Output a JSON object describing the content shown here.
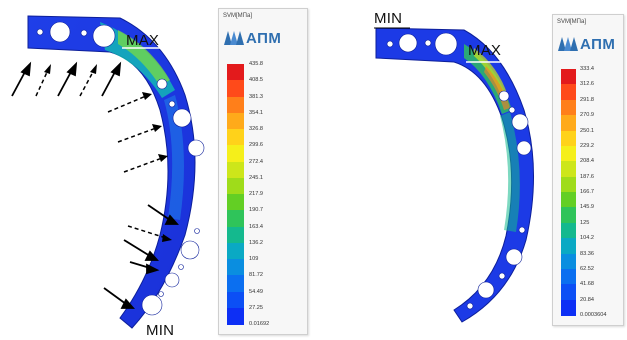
{
  "left": {
    "max_label": "MAX",
    "min_label": "MIN",
    "legend": {
      "title": "SVM[MПa]",
      "logo_text": "АПМ",
      "ticks": [
        "435.8",
        "408.5",
        "381.3",
        "354.1",
        "326.8",
        "299.6",
        "272.4",
        "245.1",
        "217.9",
        "190.7",
        "163.4",
        "136.2",
        "109",
        "81.72",
        "54.49",
        "27.25",
        "0.01692"
      ],
      "colors": [
        "#e31a1c",
        "#ff4a1a",
        "#ff7f1a",
        "#ffaa1a",
        "#ffd21a",
        "#f5ef1a",
        "#cde61a",
        "#9fdc1a",
        "#63cf24",
        "#2fc45a",
        "#14b98e",
        "#0aa9c4",
        "#0a8ee0",
        "#0b6ff0",
        "#0c4ff5",
        "#0d2ff5"
      ]
    }
  },
  "right": {
    "max_label": "MAX",
    "min_label": "MIN",
    "legend": {
      "title": "SVM[MПa]",
      "logo_text": "АПМ",
      "ticks": [
        "333.4",
        "312.6",
        "291.8",
        "270.9",
        "250.1",
        "229.2",
        "208.4",
        "187.6",
        "166.7",
        "145.9",
        "125",
        "104.2",
        "83.36",
        "62.52",
        "41.68",
        "20.84",
        "0.0003604"
      ],
      "colors": [
        "#e31a1c",
        "#ff4a1a",
        "#ff7f1a",
        "#ffaa1a",
        "#ffd21a",
        "#f5ef1a",
        "#cde61a",
        "#9fdc1a",
        "#63cf24",
        "#2fc45a",
        "#14b98e",
        "#0aa9c4",
        "#0a8ee0",
        "#0b6ff0",
        "#0c4ff5",
        "#0d2ff5"
      ]
    }
  }
}
